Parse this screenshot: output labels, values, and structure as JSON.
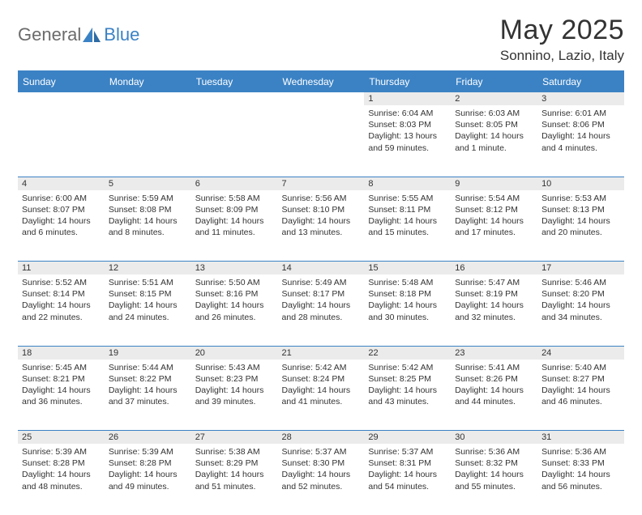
{
  "brand": {
    "word1": "General",
    "word2": "Blue"
  },
  "header": {
    "month": "May 2025",
    "location": "Sonnino, Lazio, Italy"
  },
  "colors": {
    "header_bg": "#3b82c4",
    "header_fg": "#ffffff",
    "daynum_bg": "#ebebeb",
    "border": "#3b82c4",
    "text": "#333333",
    "logo_grey": "#6b6b6b",
    "logo_blue": "#3b82c4",
    "page_bg": "#ffffff"
  },
  "daysOfWeek": [
    "Sunday",
    "Monday",
    "Tuesday",
    "Wednesday",
    "Thursday",
    "Friday",
    "Saturday"
  ],
  "weeks": [
    [
      null,
      null,
      null,
      null,
      {
        "n": "1",
        "sunrise": "6:04 AM",
        "sunset": "8:03 PM",
        "daylight": "13 hours and 59 minutes."
      },
      {
        "n": "2",
        "sunrise": "6:03 AM",
        "sunset": "8:05 PM",
        "daylight": "14 hours and 1 minute."
      },
      {
        "n": "3",
        "sunrise": "6:01 AM",
        "sunset": "8:06 PM",
        "daylight": "14 hours and 4 minutes."
      }
    ],
    [
      {
        "n": "4",
        "sunrise": "6:00 AM",
        "sunset": "8:07 PM",
        "daylight": "14 hours and 6 minutes."
      },
      {
        "n": "5",
        "sunrise": "5:59 AM",
        "sunset": "8:08 PM",
        "daylight": "14 hours and 8 minutes."
      },
      {
        "n": "6",
        "sunrise": "5:58 AM",
        "sunset": "8:09 PM",
        "daylight": "14 hours and 11 minutes."
      },
      {
        "n": "7",
        "sunrise": "5:56 AM",
        "sunset": "8:10 PM",
        "daylight": "14 hours and 13 minutes."
      },
      {
        "n": "8",
        "sunrise": "5:55 AM",
        "sunset": "8:11 PM",
        "daylight": "14 hours and 15 minutes."
      },
      {
        "n": "9",
        "sunrise": "5:54 AM",
        "sunset": "8:12 PM",
        "daylight": "14 hours and 17 minutes."
      },
      {
        "n": "10",
        "sunrise": "5:53 AM",
        "sunset": "8:13 PM",
        "daylight": "14 hours and 20 minutes."
      }
    ],
    [
      {
        "n": "11",
        "sunrise": "5:52 AM",
        "sunset": "8:14 PM",
        "daylight": "14 hours and 22 minutes."
      },
      {
        "n": "12",
        "sunrise": "5:51 AM",
        "sunset": "8:15 PM",
        "daylight": "14 hours and 24 minutes."
      },
      {
        "n": "13",
        "sunrise": "5:50 AM",
        "sunset": "8:16 PM",
        "daylight": "14 hours and 26 minutes."
      },
      {
        "n": "14",
        "sunrise": "5:49 AM",
        "sunset": "8:17 PM",
        "daylight": "14 hours and 28 minutes."
      },
      {
        "n": "15",
        "sunrise": "5:48 AM",
        "sunset": "8:18 PM",
        "daylight": "14 hours and 30 minutes."
      },
      {
        "n": "16",
        "sunrise": "5:47 AM",
        "sunset": "8:19 PM",
        "daylight": "14 hours and 32 minutes."
      },
      {
        "n": "17",
        "sunrise": "5:46 AM",
        "sunset": "8:20 PM",
        "daylight": "14 hours and 34 minutes."
      }
    ],
    [
      {
        "n": "18",
        "sunrise": "5:45 AM",
        "sunset": "8:21 PM",
        "daylight": "14 hours and 36 minutes."
      },
      {
        "n": "19",
        "sunrise": "5:44 AM",
        "sunset": "8:22 PM",
        "daylight": "14 hours and 37 minutes."
      },
      {
        "n": "20",
        "sunrise": "5:43 AM",
        "sunset": "8:23 PM",
        "daylight": "14 hours and 39 minutes."
      },
      {
        "n": "21",
        "sunrise": "5:42 AM",
        "sunset": "8:24 PM",
        "daylight": "14 hours and 41 minutes."
      },
      {
        "n": "22",
        "sunrise": "5:42 AM",
        "sunset": "8:25 PM",
        "daylight": "14 hours and 43 minutes."
      },
      {
        "n": "23",
        "sunrise": "5:41 AM",
        "sunset": "8:26 PM",
        "daylight": "14 hours and 44 minutes."
      },
      {
        "n": "24",
        "sunrise": "5:40 AM",
        "sunset": "8:27 PM",
        "daylight": "14 hours and 46 minutes."
      }
    ],
    [
      {
        "n": "25",
        "sunrise": "5:39 AM",
        "sunset": "8:28 PM",
        "daylight": "14 hours and 48 minutes."
      },
      {
        "n": "26",
        "sunrise": "5:39 AM",
        "sunset": "8:28 PM",
        "daylight": "14 hours and 49 minutes."
      },
      {
        "n": "27",
        "sunrise": "5:38 AM",
        "sunset": "8:29 PM",
        "daylight": "14 hours and 51 minutes."
      },
      {
        "n": "28",
        "sunrise": "5:37 AM",
        "sunset": "8:30 PM",
        "daylight": "14 hours and 52 minutes."
      },
      {
        "n": "29",
        "sunrise": "5:37 AM",
        "sunset": "8:31 PM",
        "daylight": "14 hours and 54 minutes."
      },
      {
        "n": "30",
        "sunrise": "5:36 AM",
        "sunset": "8:32 PM",
        "daylight": "14 hours and 55 minutes."
      },
      {
        "n": "31",
        "sunrise": "5:36 AM",
        "sunset": "8:33 PM",
        "daylight": "14 hours and 56 minutes."
      }
    ]
  ],
  "labels": {
    "sunrise": "Sunrise: ",
    "sunset": "Sunset: ",
    "daylight": "Daylight: "
  }
}
